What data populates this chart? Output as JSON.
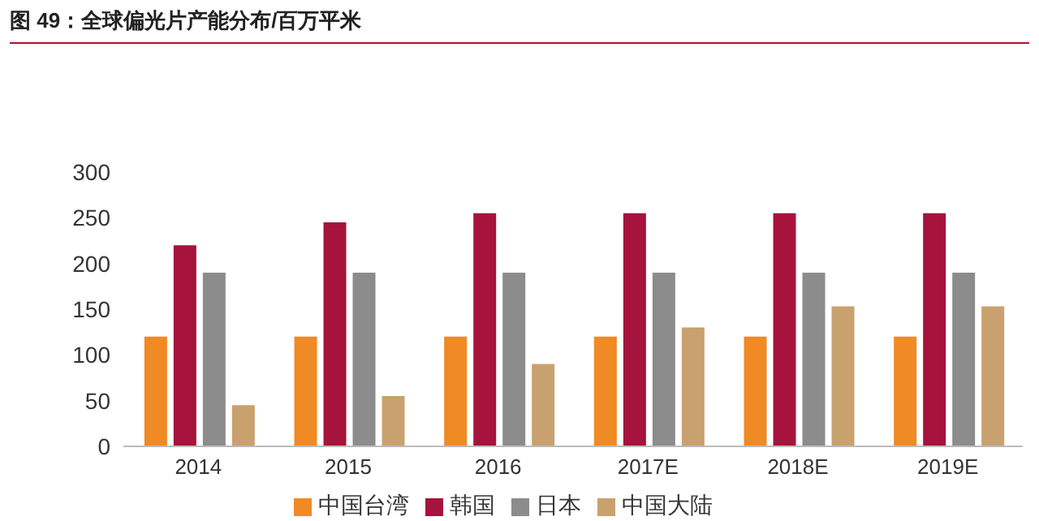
{
  "chart_data": {
    "type": "bar",
    "title": "图 49：全球偏光片产能分布/百万平米",
    "categories": [
      "2014",
      "2015",
      "2016",
      "2017E",
      "2018E",
      "2019E"
    ],
    "series": [
      {
        "name": "中国台湾",
        "color": "#f08a24",
        "values": [
          120,
          120,
          120,
          120,
          120,
          120
        ]
      },
      {
        "name": "韩国",
        "color": "#a6133c",
        "values": [
          220,
          245,
          255,
          255,
          255,
          255
        ]
      },
      {
        "name": "日本",
        "color": "#8c8c8c",
        "values": [
          190,
          190,
          190,
          190,
          190,
          190
        ]
      },
      {
        "name": "中国大陆",
        "color": "#c9a16e",
        "values": [
          45,
          55,
          90,
          130,
          153,
          153
        ]
      }
    ],
    "ylim": [
      0,
      300
    ],
    "yticks": [
      0,
      50,
      100,
      150,
      200,
      250,
      300
    ],
    "grid": false,
    "legend": "bottom"
  }
}
